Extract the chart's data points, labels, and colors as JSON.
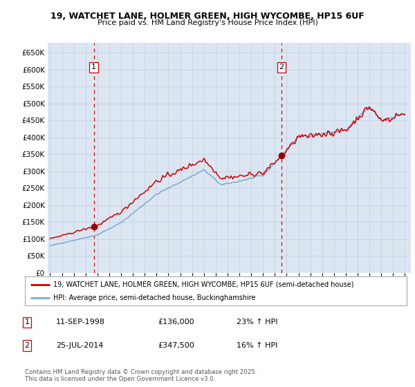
{
  "title1": "19, WATCHET LANE, HOLMER GREEN, HIGH WYCOMBE, HP15 6UF",
  "title2": "Price paid vs. HM Land Registry's House Price Index (HPI)",
  "sale1_label": "1",
  "sale1_info": "11-SEP-1998",
  "sale1_price_str": "£136,000",
  "sale1_price": 136000,
  "sale1_hpi_pct": "23% ↑ HPI",
  "sale2_label": "2",
  "sale2_info": "25-JUL-2014",
  "sale2_price_str": "£347,500",
  "sale2_price": 347500,
  "sale2_hpi_pct": "16% ↑ HPI",
  "legend_property": "19, WATCHET LANE, HOLMER GREEN, HIGH WYCOMBE, HP15 6UF (semi-detached house)",
  "legend_hpi": "HPI: Average price, semi-detached house, Buckinghamshire",
  "footer": "Contains HM Land Registry data © Crown copyright and database right 2025.\nThis data is licensed under the Open Government Licence v3.0.",
  "sale_color": "#cc0000",
  "hpi_color": "#7aaad0",
  "bg_color": "#dce6f1",
  "grid_color": "#c8d4e8",
  "dashed_color": "#cc0000",
  "marker_color": "#990000",
  "ylim": [
    0,
    680000
  ],
  "yticks": [
    0,
    50000,
    100000,
    150000,
    200000,
    250000,
    300000,
    350000,
    400000,
    450000,
    500000,
    550000,
    600000,
    650000
  ],
  "xstart": 1994.8,
  "xend": 2025.5,
  "sale1_x": 1998.7,
  "sale2_x": 2014.57
}
